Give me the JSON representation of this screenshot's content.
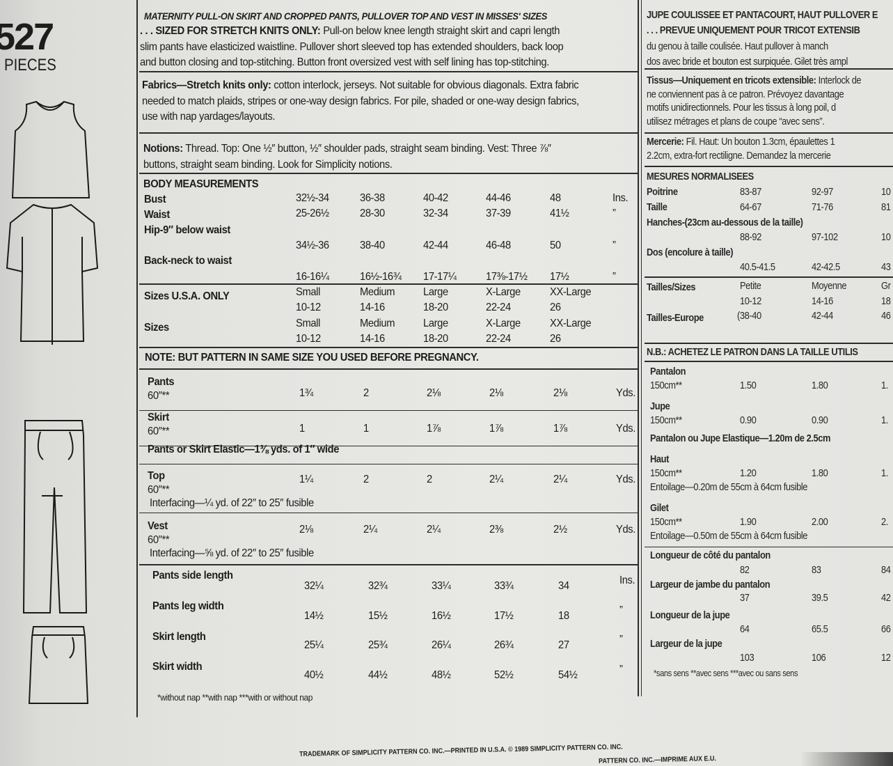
{
  "left": {
    "pattern_number": "527",
    "pieces_label": "PIECES",
    "illustrations": [
      "vest-illustration",
      "top-illustration",
      "pants-illustration",
      "skirt-illustration"
    ]
  },
  "en": {
    "title": "MATERNITY PULL-ON SKIRT AND CROPPED PANTS, PULLOVER TOP AND VEST IN MISSES' SIZES",
    "desc": [
      {
        "b": ". . . SIZED FOR STRETCH KNITS ONLY:",
        "t": " Pull-on below knee length straight skirt and capri length"
      },
      {
        "b": "",
        "t": "slim pants have elasticized waistline. Pullover short sleeved top has extended shoulders, back loop"
      },
      {
        "b": "",
        "t": "and button closing and top-stitching. Button front oversized vest with self lining has top-stitching."
      }
    ],
    "fabrics": [
      {
        "b": "Fabrics—Stretch knits only:",
        "t": " cotton interlock, jerseys. Not suitable for obvious diagonals. Extra fabric"
      },
      {
        "b": "",
        "t": "needed to match plaids, stripes or one-way design fabrics. For pile, shaded or one-way design fabrics,"
      },
      {
        "b": "",
        "t": "use with nap yardages/layouts."
      }
    ],
    "notions": [
      {
        "b": "Notions:",
        "t": " Thread. Top: One ½″ button, ½″ shoulder pads, straight seam binding. Vest: Three ⅞″"
      },
      {
        "b": "",
        "t": "buttons, straight seam binding. Look for Simplicity notions."
      }
    ],
    "body_title": "BODY MEASUREMENTS",
    "body_rows": [
      {
        "label": "Bust",
        "values": [
          "32½-34",
          "36-38",
          "40-42",
          "44-46",
          "48"
        ],
        "unit": "Ins."
      },
      {
        "label": "Waist",
        "values": [
          "25-26½",
          "28-30",
          "32-34",
          "37-39",
          "41½"
        ],
        "unit": "”"
      },
      {
        "label": "Hip-9″ below waist",
        "values": [
          "34½-36",
          "38-40",
          "42-44",
          "46-48",
          "50"
        ],
        "unit": "”"
      },
      {
        "label": "Back-neck to waist",
        "values": [
          "16-16¼",
          "16½-16¾",
          "17-17¼",
          "17⅜-17½",
          "17½"
        ],
        "unit": "”"
      }
    ],
    "sizes_rows": [
      {
        "label": "Sizes U.S.A. ONLY",
        "names": [
          "Small",
          "Medium",
          "Large",
          "X-Large",
          "XX-Large"
        ],
        "nums": [
          "10-12",
          "14-16",
          "18-20",
          "22-24",
          "26"
        ]
      },
      {
        "label": "Sizes",
        "names": [
          "Small",
          "Medium",
          "Large",
          "X-Large",
          "XX-Large"
        ],
        "nums": [
          "10-12",
          "14-16",
          "18-20",
          "22-24",
          "26"
        ]
      }
    ],
    "note": "NOTE: BUT PATTERN IN SAME SIZE YOU USED BEFORE PREGNANCY.",
    "yardage": [
      {
        "label": "Pants",
        "width": "60″**",
        "values": [
          "1¾",
          "2",
          "2⅛",
          "2⅛",
          "2⅛"
        ],
        "unit": "Yds.",
        "extra": ""
      },
      {
        "label": "Skirt",
        "width": "60″**",
        "values": [
          "1",
          "1",
          "1⅞",
          "1⅞",
          "1⅞"
        ],
        "unit": "Yds.",
        "extra": ""
      },
      {
        "label": "Pants or Skirt Elastic—1⅜ yds. of 1″ wide",
        "width": "",
        "values": [],
        "unit": "",
        "extra": ""
      },
      {
        "label": "Top",
        "width": "60″**",
        "values": [
          "1¼",
          "2",
          "2",
          "2¼",
          "2¼"
        ],
        "unit": "Yds.",
        "extra": "Interfacing—¼ yd. of 22″ to 25″ fusible"
      },
      {
        "label": "Vest",
        "width": "60″**",
        "values": [
          "2⅛",
          "2¼",
          "2¼",
          "2⅜",
          "2½"
        ],
        "unit": "Yds.",
        "extra": "Interfacing—⅝ yd. of 22″ to 25″ fusible"
      }
    ],
    "finished": [
      {
        "label": "Pants side length",
        "values": [
          "32¼",
          "32¾",
          "33¼",
          "33¾",
          "34"
        ],
        "unit": "Ins."
      },
      {
        "label": "Pants leg width",
        "values": [
          "14½",
          "15½",
          "16½",
          "17½",
          "18"
        ],
        "unit": "”"
      },
      {
        "label": "Skirt length",
        "values": [
          "25¼",
          "25¾",
          "26¼",
          "26¾",
          "27"
        ],
        "unit": "”"
      },
      {
        "label": "Skirt width",
        "values": [
          "40½",
          "44½",
          "48½",
          "52½",
          "54½"
        ],
        "unit": "”"
      }
    ],
    "footnote": "*without nap   **with nap   ***with or without nap"
  },
  "fr": {
    "title": "JUPE COULISSEE ET PANTACOURT, HAUT PULLOVER E",
    "desc": [
      {
        "b": ". . . PREVUE UNIQUEMENT POUR TRICOT EXTENSIB",
        "t": ""
      },
      {
        "b": "",
        "t": "du genou à taille coulisée. Haut pullover à manch"
      },
      {
        "b": "",
        "t": "dos avec bride et bouton est surpiquée. Gilet très ampl"
      }
    ],
    "fabrics": [
      {
        "b": "Tissus—Uniquement en tricots extensible:",
        "t": " Interlock de"
      },
      {
        "b": "",
        "t": "ne conviennent pas à ce patron. Prévoyez davantage"
      },
      {
        "b": "",
        "t": "motifs unidirectionnels. Pour les tissus à long poil, d"
      },
      {
        "b": "",
        "t": "utilisez métrages et plans de coupe “avec sens”."
      }
    ],
    "notions": [
      {
        "b": "Mercerie:",
        "t": " Fil. Haut: Un bouton 1.3cm, épaulettes 1"
      },
      {
        "b": "",
        "t": "2.2cm, extra-fort rectiligne. Demandez la mercerie"
      }
    ],
    "body_title": "MESURES NORMALISEES",
    "body_rows": [
      {
        "label": "Poitrine",
        "values": [
          "83-87",
          "92-97",
          "10"
        ],
        "sub": false
      },
      {
        "label": "Taille",
        "values": [
          "64-67",
          "71-76",
          "81"
        ],
        "sub": false
      },
      {
        "label": "Hanches-(23cm au-dessous de la taille)",
        "values": [
          "88-92",
          "97-102",
          "10"
        ],
        "sub": true
      },
      {
        "label": "Dos (encolure à taille)",
        "values": [
          "40.5-41.5",
          "42-42.5",
          "43"
        ],
        "sub": true
      }
    ],
    "sizes_label": "Tailles/Sizes",
    "sizes_names": [
      "Petite",
      "Moyenne",
      "Gr"
    ],
    "sizes_nums": [
      "10-12",
      "14-16",
      "18"
    ],
    "europe_label": "Tailles-Europe",
    "europe_values": [
      "(38-40",
      "42-44",
      "46"
    ],
    "note": "N.B.: ACHETEZ LE PATRON DANS LA TAILLE UTILIS",
    "yardage": [
      {
        "label": "Pantalon",
        "width": "150cm**",
        "values": [
          "1.50",
          "1.80",
          "1."
        ],
        "extra": ""
      },
      {
        "label": "Jupe",
        "width": "150cm**",
        "values": [
          "0.90",
          "0.90",
          "1."
        ],
        "extra": ""
      },
      {
        "label": "Pantalon ou Jupe Elastique—1.20m de 2.5cm",
        "width": "",
        "values": [],
        "extra": ""
      },
      {
        "label": "Haut",
        "width": "150cm**",
        "values": [
          "1.20",
          "1.80",
          "1."
        ],
        "extra": "Entoilage—0.20m de 55cm à 64cm fusible"
      },
      {
        "label": "Gilet",
        "width": "150cm**",
        "values": [
          "1.90",
          "2.00",
          "2."
        ],
        "extra": "Entoilage—0.50m de 55cm à 64cm fusible"
      }
    ],
    "finished": [
      {
        "label": "Longueur de côté du pantalon",
        "values": [
          "82",
          "83",
          "84"
        ]
      },
      {
        "label": "Largeur de jambe du pantalon",
        "values": [
          "37",
          "39.5",
          "42"
        ]
      },
      {
        "label": "Longueur de la jupe",
        "values": [
          "64",
          "65.5",
          "66"
        ]
      },
      {
        "label": "Largeur de la jupe",
        "values": [
          "103",
          "106",
          "12"
        ]
      }
    ],
    "footnote": "*sans sens   **avec sens   ***avec ou sans sens"
  },
  "footer": {
    "line1": "TRADEMARK OF SIMPLICITY PATTERN CO. INC.—PRINTED IN U.S.A. © 1989 SIMPLICITY PATTERN CO. INC.",
    "line2": "PATTERN CO. INC.—IMPRIME AUX E.U."
  }
}
